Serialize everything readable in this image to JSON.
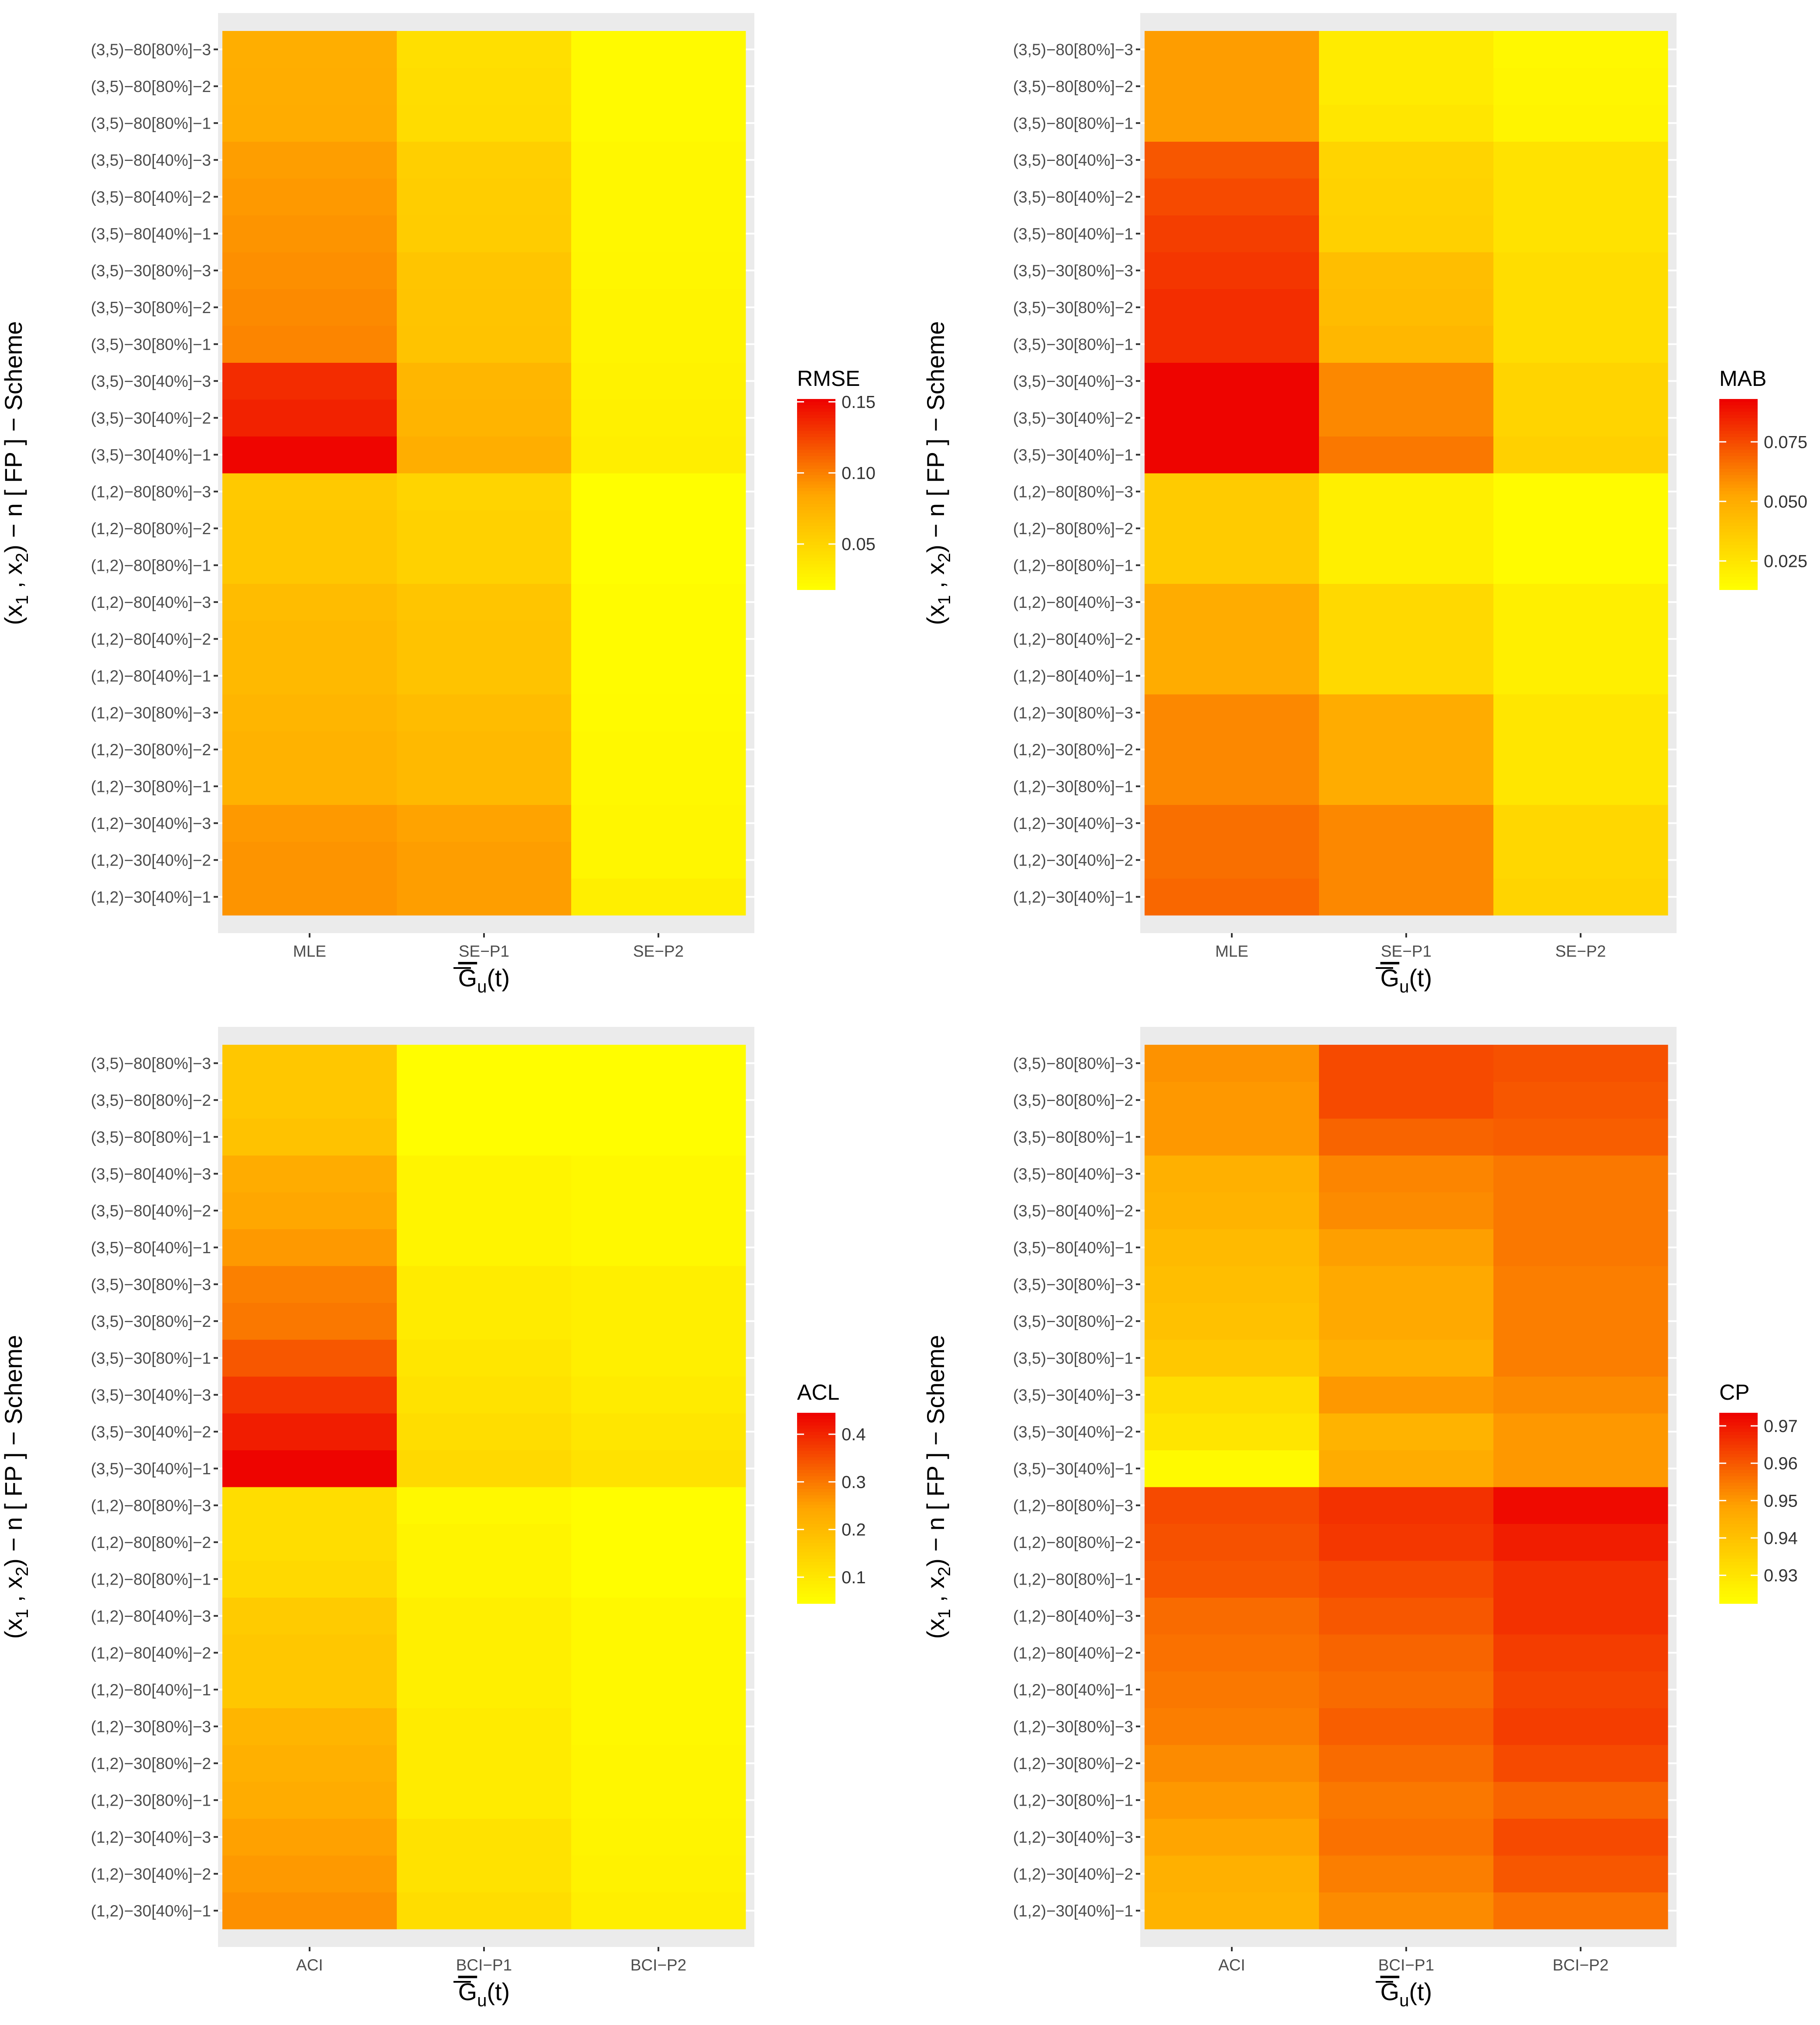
{
  "chart_data": [
    {
      "type": "heatmap",
      "title": "",
      "xlabel": "G_u(t)",
      "ylabel": "(x1, x2) - n[FP] - Scheme",
      "categories": [
        "MLE",
        "SE−P1",
        "SE−P2"
      ],
      "rows": [
        "(1,2)−30[40%]−1",
        "(1,2)−30[40%]−2",
        "(1,2)−30[40%]−3",
        "(1,2)−30[80%]−1",
        "(1,2)−30[80%]−2",
        "(1,2)−30[80%]−3",
        "(1,2)−80[40%]−1",
        "(1,2)−80[40%]−2",
        "(1,2)−80[40%]−3",
        "(1,2)−80[80%]−1",
        "(1,2)−80[80%]−2",
        "(1,2)−80[80%]−3",
        "(3,5)−30[40%]−1",
        "(3,5)−30[40%]−2",
        "(3,5)−30[40%]−3",
        "(3,5)−30[80%]−1",
        "(3,5)−30[80%]−2",
        "(3,5)−30[80%]−3",
        "(3,5)−80[40%]−1",
        "(3,5)−80[40%]−2",
        "(3,5)−80[40%]−3",
        "(3,5)−80[80%]−1",
        "(3,5)−80[80%]−2",
        "(3,5)−80[80%]−3"
      ],
      "values": [
        [
          0.092,
          0.088,
          0.03
        ],
        [
          0.092,
          0.088,
          0.025
        ],
        [
          0.09,
          0.086,
          0.025
        ],
        [
          0.075,
          0.07,
          0.023
        ],
        [
          0.075,
          0.07,
          0.023
        ],
        [
          0.073,
          0.068,
          0.022
        ],
        [
          0.07,
          0.063,
          0.021
        ],
        [
          0.07,
          0.063,
          0.021
        ],
        [
          0.068,
          0.061,
          0.021
        ],
        [
          0.06,
          0.052,
          0.019
        ],
        [
          0.06,
          0.052,
          0.019
        ],
        [
          0.058,
          0.05,
          0.019
        ],
        [
          0.15,
          0.078,
          0.031
        ],
        [
          0.138,
          0.074,
          0.029
        ],
        [
          0.134,
          0.072,
          0.028
        ],
        [
          0.098,
          0.063,
          0.026
        ],
        [
          0.096,
          0.062,
          0.026
        ],
        [
          0.094,
          0.061,
          0.025
        ],
        [
          0.092,
          0.056,
          0.024
        ],
        [
          0.09,
          0.055,
          0.024
        ],
        [
          0.088,
          0.054,
          0.024
        ],
        [
          0.08,
          0.044,
          0.022
        ],
        [
          0.079,
          0.043,
          0.022
        ],
        [
          0.078,
          0.042,
          0.022
        ]
      ],
      "legend": {
        "title": "RMSE",
        "ticks": [
          0.05,
          0.1,
          0.15
        ],
        "tick_labels": [
          "0.05",
          "0.10",
          "0.15"
        ],
        "range": [
          0.018,
          0.152
        ]
      },
      "colors": {
        "low": "#FFFF00",
        "mid": "#FFA500",
        "high": "#EE0000"
      }
    },
    {
      "type": "heatmap",
      "title": "",
      "xlabel": "G_u(t)",
      "ylabel": "(x1, x2) - n[FP] - Scheme",
      "categories": [
        "MLE",
        "SE−P1",
        "SE−P2"
      ],
      "rows": [
        "(1,2)−30[40%]−1",
        "(1,2)−30[40%]−2",
        "(1,2)−30[40%]−3",
        "(1,2)−30[80%]−1",
        "(1,2)−30[80%]−2",
        "(1,2)−30[80%]−3",
        "(1,2)−80[40%]−1",
        "(1,2)−80[40%]−2",
        "(1,2)−80[40%]−3",
        "(1,2)−80[80%]−1",
        "(1,2)−80[80%]−2",
        "(1,2)−80[80%]−3",
        "(3,5)−30[40%]−1",
        "(3,5)−30[40%]−2",
        "(3,5)−30[40%]−3",
        "(3,5)−30[80%]−1",
        "(3,5)−30[80%]−2",
        "(3,5)−30[80%]−3",
        "(3,5)−80[40%]−1",
        "(3,5)−80[40%]−2",
        "(3,5)−80[40%]−3",
        "(3,5)−80[80%]−1",
        "(3,5)−80[80%]−2",
        "(3,5)−80[80%]−3"
      ],
      "values": [
        [
          0.068,
          0.06,
          0.032
        ],
        [
          0.066,
          0.06,
          0.031
        ],
        [
          0.066,
          0.06,
          0.031
        ],
        [
          0.06,
          0.05,
          0.024
        ],
        [
          0.06,
          0.05,
          0.024
        ],
        [
          0.06,
          0.05,
          0.024
        ],
        [
          0.05,
          0.03,
          0.02
        ],
        [
          0.05,
          0.03,
          0.02
        ],
        [
          0.05,
          0.03,
          0.02
        ],
        [
          0.036,
          0.02,
          0.015
        ],
        [
          0.036,
          0.02,
          0.015
        ],
        [
          0.036,
          0.02,
          0.015
        ],
        [
          0.092,
          0.064,
          0.034
        ],
        [
          0.092,
          0.06,
          0.032
        ],
        [
          0.092,
          0.06,
          0.032
        ],
        [
          0.082,
          0.045,
          0.028
        ],
        [
          0.082,
          0.043,
          0.028
        ],
        [
          0.08,
          0.042,
          0.028
        ],
        [
          0.078,
          0.034,
          0.026
        ],
        [
          0.075,
          0.033,
          0.026
        ],
        [
          0.072,
          0.032,
          0.026
        ],
        [
          0.055,
          0.024,
          0.018
        ],
        [
          0.055,
          0.022,
          0.017
        ],
        [
          0.055,
          0.022,
          0.016
        ]
      ],
      "legend": {
        "title": "MAB",
        "ticks": [
          0.025,
          0.05,
          0.075
        ],
        "tick_labels": [
          "0.025",
          "0.050",
          "0.075"
        ],
        "range": [
          0.013,
          0.093
        ]
      },
      "colors": {
        "low": "#FFFF00",
        "mid": "#FFA500",
        "high": "#EE0000"
      }
    },
    {
      "type": "heatmap",
      "title": "",
      "xlabel": "G_u(t)",
      "ylabel": "(x1, x2) - n[FP] - Scheme",
      "categories": [
        "ACI",
        "BCI−P1",
        "BCI−P2"
      ],
      "rows": [
        "(1,2)−30[40%]−1",
        "(1,2)−30[40%]−2",
        "(1,2)−30[40%]−3",
        "(1,2)−30[80%]−1",
        "(1,2)−30[80%]−2",
        "(1,2)−30[80%]−3",
        "(1,2)−80[40%]−1",
        "(1,2)−80[40%]−2",
        "(1,2)−80[40%]−3",
        "(1,2)−80[80%]−1",
        "(1,2)−80[80%]−2",
        "(1,2)−80[80%]−3",
        "(3,5)−30[40%]−1",
        "(3,5)−30[40%]−2",
        "(3,5)−30[40%]−3",
        "(3,5)−30[80%]−1",
        "(3,5)−30[80%]−2",
        "(3,5)−30[80%]−3",
        "(3,5)−80[40%]−1",
        "(3,5)−80[40%]−2",
        "(3,5)−80[40%]−3",
        "(3,5)−80[80%]−1",
        "(3,5)−80[80%]−2",
        "(3,5)−80[80%]−3"
      ],
      "values": [
        [
          0.27,
          0.12,
          0.08
        ],
        [
          0.26,
          0.11,
          0.075
        ],
        [
          0.25,
          0.11,
          0.07
        ],
        [
          0.23,
          0.09,
          0.065
        ],
        [
          0.22,
          0.09,
          0.065
        ],
        [
          0.21,
          0.09,
          0.06
        ],
        [
          0.17,
          0.08,
          0.06
        ],
        [
          0.17,
          0.08,
          0.06
        ],
        [
          0.16,
          0.08,
          0.06
        ],
        [
          0.13,
          0.07,
          0.05
        ],
        [
          0.12,
          0.07,
          0.05
        ],
        [
          0.12,
          0.06,
          0.05
        ],
        [
          0.44,
          0.13,
          0.11
        ],
        [
          0.41,
          0.12,
          0.1
        ],
        [
          0.38,
          0.11,
          0.09
        ],
        [
          0.34,
          0.1,
          0.08
        ],
        [
          0.3,
          0.09,
          0.08
        ],
        [
          0.29,
          0.09,
          0.08
        ],
        [
          0.26,
          0.07,
          0.06
        ],
        [
          0.24,
          0.07,
          0.06
        ],
        [
          0.23,
          0.07,
          0.06
        ],
        [
          0.18,
          0.05,
          0.05
        ],
        [
          0.17,
          0.05,
          0.05
        ],
        [
          0.17,
          0.05,
          0.05
        ]
      ],
      "legend": {
        "title": "ACL",
        "ticks": [
          0.1,
          0.2,
          0.3,
          0.4
        ],
        "tick_labels": [
          "0.1",
          "0.2",
          "0.3",
          "0.4"
        ],
        "range": [
          0.045,
          0.445
        ]
      },
      "colors": {
        "low": "#FFFF00",
        "mid": "#FFA500",
        "high": "#EE0000"
      }
    },
    {
      "type": "heatmap",
      "title": "",
      "xlabel": "G_u(t)",
      "ylabel": "(x1, x2) - n[FP] - Scheme",
      "categories": [
        "ACI",
        "BCI−P1",
        "BCI−P2"
      ],
      "rows": [
        "(1,2)−30[40%]−1",
        "(1,2)−30[40%]−2",
        "(1,2)−30[40%]−3",
        "(1,2)−30[80%]−1",
        "(1,2)−30[80%]−2",
        "(1,2)−30[80%]−3",
        "(1,2)−80[40%]−1",
        "(1,2)−80[40%]−2",
        "(1,2)−80[40%]−3",
        "(1,2)−80[80%]−1",
        "(1,2)−80[80%]−2",
        "(1,2)−80[80%]−3",
        "(3,5)−30[40%]−1",
        "(3,5)−30[40%]−2",
        "(3,5)−30[40%]−3",
        "(3,5)−30[80%]−1",
        "(3,5)−30[80%]−2",
        "(3,5)−30[80%]−3",
        "(3,5)−80[40%]−1",
        "(3,5)−80[40%]−2",
        "(3,5)−80[40%]−3",
        "(3,5)−80[80%]−1",
        "(3,5)−80[80%]−2",
        "(3,5)−80[80%]−3"
      ],
      "values": [
        [
          0.944,
          0.952,
          0.956
        ],
        [
          0.945,
          0.954,
          0.96
        ],
        [
          0.948,
          0.956,
          0.962
        ],
        [
          0.95,
          0.955,
          0.958
        ],
        [
          0.952,
          0.957,
          0.962
        ],
        [
          0.954,
          0.959,
          0.964
        ],
        [
          0.955,
          0.957,
          0.963
        ],
        [
          0.956,
          0.958,
          0.964
        ],
        [
          0.957,
          0.96,
          0.966
        ],
        [
          0.96,
          0.962,
          0.966
        ],
        [
          0.961,
          0.965,
          0.969
        ],
        [
          0.962,
          0.966,
          0.972
        ],
        [
          0.924,
          0.946,
          0.95
        ],
        [
          0.93,
          0.944,
          0.95
        ],
        [
          0.932,
          0.95,
          0.952
        ],
        [
          0.938,
          0.945,
          0.954
        ],
        [
          0.94,
          0.947,
          0.954
        ],
        [
          0.941,
          0.947,
          0.954
        ],
        [
          0.942,
          0.949,
          0.955
        ],
        [
          0.944,
          0.952,
          0.955
        ],
        [
          0.945,
          0.953,
          0.955
        ],
        [
          0.95,
          0.958,
          0.959
        ],
        [
          0.95,
          0.962,
          0.96
        ],
        [
          0.951,
          0.962,
          0.961
        ]
      ],
      "legend": {
        "title": "CP",
        "ticks": [
          0.93,
          0.94,
          0.95,
          0.96,
          0.97
        ],
        "tick_labels": [
          "0.93",
          "0.94",
          "0.95",
          "0.96",
          "0.97"
        ],
        "range": [
          0.9225,
          0.9735
        ]
      },
      "colors": {
        "low": "#FFFF00",
        "mid": "#FFA500",
        "high": "#EE0000"
      }
    }
  ]
}
